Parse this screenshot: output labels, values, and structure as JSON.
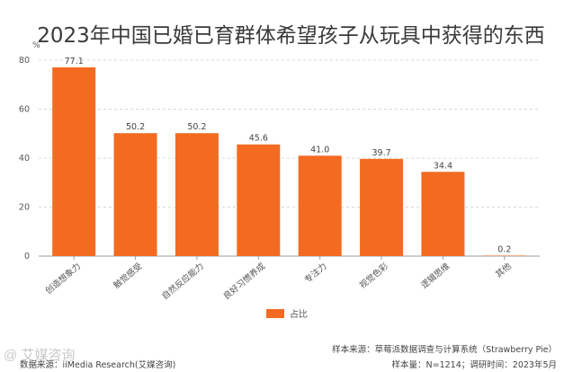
{
  "title": "2023年中国已婚已育群体希望孩子从玩具中获得的东西",
  "colors": {
    "bar": "#F26B21",
    "grid": "#d8d8d8",
    "axis": "#9e9e9e"
  },
  "chart_data": {
    "type": "bar",
    "unit_label": "%",
    "categories": [
      "创造想象力",
      "触觉感受",
      "自然反应能力",
      "良好习惯养成",
      "专注力",
      "视觉色彩",
      "逻辑思维",
      "其他"
    ],
    "series": [
      {
        "name": "占比",
        "values": [
          77.1,
          50.2,
          50.2,
          45.6,
          41.0,
          39.7,
          34.4,
          0.2
        ]
      }
    ],
    "value_labels": [
      "77.1",
      "50.2",
      "50.2",
      "45.6",
      "41.0",
      "39.7",
      "34.4",
      "0.2"
    ],
    "yticks": [
      0,
      20,
      40,
      60,
      80
    ],
    "ylim": [
      0,
      80
    ],
    "grid": true,
    "legend_position": "bottom-center"
  },
  "footer": {
    "sample_source": "样本来源：草莓派数据调查与计算系统（Strawberry Pie）",
    "sample_size": "样本量：N=1214；调研时间：2023年5月",
    "data_source": "数据来源：iiMedia Research(艾媒咨询)",
    "watermark": "@ 艾媒咨询"
  }
}
